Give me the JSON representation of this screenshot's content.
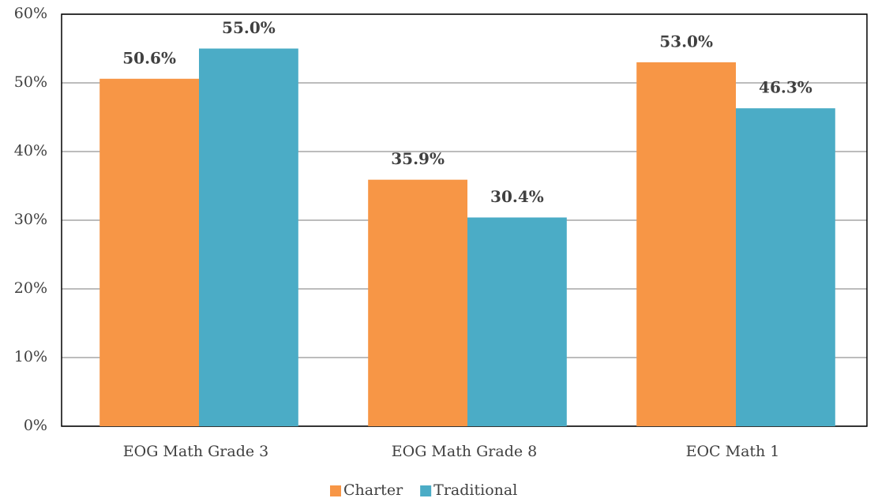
{
  "chart_data": {
    "type": "bar",
    "categories": [
      "EOG Math Grade 3",
      "EOG Math Grade 8",
      "EOC Math 1"
    ],
    "series": [
      {
        "name": "Charter",
        "color": "#f79646",
        "values": [
          50.6,
          35.9,
          53.0
        ],
        "value_labels": [
          "50.6%",
          "35.9%",
          "53.0%"
        ]
      },
      {
        "name": "Traditional",
        "color": "#4bacc6",
        "values": [
          55.0,
          30.4,
          46.3
        ],
        "value_labels": [
          "55.0%",
          "30.4%",
          "46.3%"
        ]
      }
    ],
    "ylim": [
      0,
      60
    ],
    "yticks": [
      {
        "value": 0,
        "label": "0%"
      },
      {
        "value": 10,
        "label": "10%"
      },
      {
        "value": 20,
        "label": "20%"
      },
      {
        "value": 30,
        "label": "30%"
      },
      {
        "value": 40,
        "label": "40%"
      },
      {
        "value": 50,
        "label": "50%"
      },
      {
        "value": 60,
        "label": "60%"
      }
    ],
    "grid": true,
    "legend": "bottom"
  }
}
